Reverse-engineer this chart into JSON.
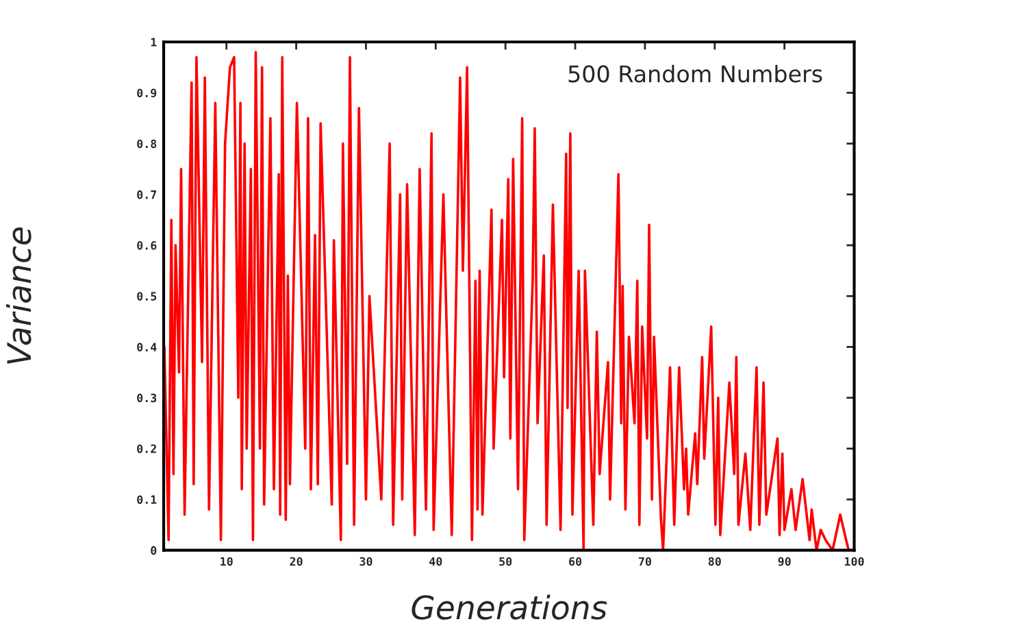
{
  "chart_data": {
    "type": "line",
    "xlabel": "Generations",
    "ylabel": "Variance",
    "annotations": [
      "500 Random Numbers"
    ],
    "xlim": [
      1,
      100
    ],
    "ylim": [
      0,
      1
    ],
    "xticks": [
      10,
      20,
      30,
      40,
      50,
      60,
      70,
      80,
      90,
      100
    ],
    "yticks": [
      0,
      0.1,
      0.2,
      0.3,
      0.4,
      0.5,
      0.6,
      0.7,
      0.8,
      0.9,
      1
    ],
    "grid": false,
    "legend": false,
    "marker": "none",
    "line_style": "solid",
    "series": [
      {
        "color": "#ff0000",
        "x": [
          1.1,
          1.7,
          2.1,
          2.4,
          2.7,
          3.2,
          3.5,
          4.0,
          5.0,
          5.3,
          5.7,
          6.5,
          6.9,
          7.5,
          8.4,
          9.2,
          9.8,
          10.5,
          11.1,
          11.7,
          12.0,
          12.2,
          12.6,
          12.9,
          13.5,
          13.8,
          14.2,
          14.8,
          15.1,
          15.4,
          16.3,
          16.8,
          17.5,
          17.7,
          18.0,
          18.5,
          18.8,
          19.1,
          20.1,
          21.3,
          21.7,
          22.1,
          22.7,
          23.1,
          23.5,
          25.1,
          25.4,
          26.4,
          26.7,
          27.3,
          27.7,
          28.3,
          29.0,
          30.0,
          30.5,
          32.2,
          33.4,
          33.9,
          34.9,
          35.2,
          35.9,
          37.0,
          37.7,
          38.6,
          39.4,
          39.7,
          41.1,
          42.3,
          43.5,
          43.9,
          44.5,
          45.2,
          45.7,
          46.0,
          46.3,
          46.7,
          48.0,
          48.3,
          49.5,
          49.8,
          50.4,
          50.7,
          51.1,
          51.8,
          52.4,
          52.7,
          53.9,
          54.2,
          54.6,
          55.5,
          55.9,
          56.8,
          57.9,
          58.7,
          58.9,
          59.3,
          59.6,
          60.5,
          61.2,
          61.4,
          62.6,
          63.1,
          63.5,
          64.7,
          65.0,
          66.2,
          66.6,
          66.8,
          67.2,
          67.7,
          68.5,
          68.9,
          69.2,
          69.6,
          70.3,
          70.6,
          71.0,
          71.3,
          72.3,
          72.6,
          73.6,
          74.2,
          74.9,
          75.6,
          75.9,
          76.2,
          77.2,
          77.5,
          78.2,
          78.5,
          79.5,
          80.1,
          80.5,
          80.8,
          82.1,
          82.8,
          83.1,
          83.4,
          84.4,
          85.1,
          86.0,
          86.4,
          87.0,
          87.4,
          89.0,
          89.3,
          89.7,
          90.0,
          91.0,
          91.6,
          92.6,
          93.6,
          93.9,
          94.6,
          95.2,
          95.9,
          96.9,
          98.0,
          98.5,
          99.2,
          99.6
        ],
        "values": [
          0.4,
          0.02,
          0.65,
          0.15,
          0.6,
          0.35,
          0.75,
          0.07,
          0.92,
          0.13,
          0.97,
          0.37,
          0.93,
          0.08,
          0.88,
          0.02,
          0.8,
          0.95,
          0.97,
          0.3,
          0.88,
          0.12,
          0.8,
          0.2,
          0.75,
          0.02,
          0.98,
          0.2,
          0.95,
          0.09,
          0.85,
          0.12,
          0.74,
          0.07,
          0.97,
          0.06,
          0.54,
          0.13,
          0.88,
          0.2,
          0.85,
          0.12,
          0.62,
          0.13,
          0.84,
          0.09,
          0.61,
          0.02,
          0.8,
          0.17,
          0.97,
          0.05,
          0.87,
          0.1,
          0.5,
          0.1,
          0.8,
          0.05,
          0.7,
          0.1,
          0.72,
          0.03,
          0.75,
          0.08,
          0.82,
          0.04,
          0.7,
          0.03,
          0.93,
          0.55,
          0.95,
          0.02,
          0.53,
          0.08,
          0.55,
          0.07,
          0.67,
          0.2,
          0.65,
          0.34,
          0.73,
          0.22,
          0.77,
          0.12,
          0.85,
          0.02,
          0.53,
          0.83,
          0.25,
          0.58,
          0.05,
          0.68,
          0.04,
          0.78,
          0.28,
          0.82,
          0.07,
          0.55,
          0.0,
          0.55,
          0.05,
          0.43,
          0.15,
          0.37,
          0.1,
          0.74,
          0.25,
          0.52,
          0.08,
          0.42,
          0.25,
          0.53,
          0.05,
          0.44,
          0.22,
          0.64,
          0.1,
          0.42,
          0.06,
          0.0,
          0.36,
          0.05,
          0.36,
          0.12,
          0.2,
          0.07,
          0.23,
          0.13,
          0.38,
          0.18,
          0.44,
          0.05,
          0.3,
          0.03,
          0.33,
          0.15,
          0.38,
          0.05,
          0.19,
          0.04,
          0.36,
          0.05,
          0.33,
          0.07,
          0.22,
          0.03,
          0.19,
          0.04,
          0.12,
          0.04,
          0.14,
          0.02,
          0.08,
          0.0,
          0.04,
          0.02,
          0.0,
          0.07,
          0.04,
          0.0,
          0.0
        ]
      }
    ]
  }
}
